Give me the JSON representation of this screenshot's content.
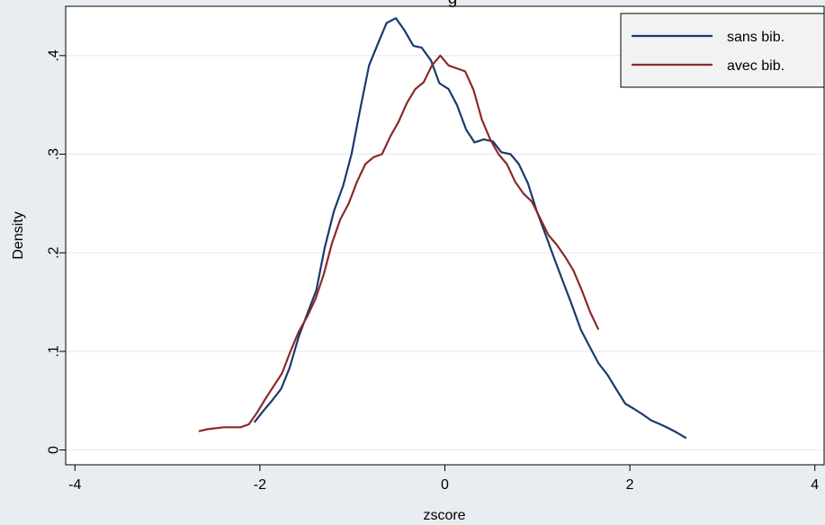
{
  "chart_data": {
    "type": "line",
    "title": "g",
    "xlabel": "zscore",
    "ylabel": "Density",
    "xlim": [
      -4.1,
      4.1
    ],
    "ylim": [
      -0.015,
      0.45
    ],
    "grid": "horizontal",
    "legend_position": "top-right",
    "x_ticks": [
      {
        "value": -4,
        "label": "-4"
      },
      {
        "value": -2,
        "label": "-2"
      },
      {
        "value": 0,
        "label": "0"
      },
      {
        "value": 2,
        "label": "2"
      },
      {
        "value": 4,
        "label": "4"
      }
    ],
    "y_ticks": [
      {
        "value": 0,
        "label": "0"
      },
      {
        "value": 0.1,
        "label": ".1"
      },
      {
        "value": 0.2,
        "label": ".2"
      },
      {
        "value": 0.3,
        "label": ".3"
      },
      {
        "value": 0.4,
        "label": ".4"
      }
    ],
    "series": [
      {
        "name": "sans bib.",
        "color": "#1a3a6e",
        "points": [
          [
            -2.06,
            0.028
          ],
          [
            -1.96,
            0.04
          ],
          [
            -1.87,
            0.05
          ],
          [
            -1.77,
            0.062
          ],
          [
            -1.68,
            0.083
          ],
          [
            -1.58,
            0.115
          ],
          [
            -1.48,
            0.14
          ],
          [
            -1.39,
            0.162
          ],
          [
            -1.3,
            0.205
          ],
          [
            -1.2,
            0.242
          ],
          [
            -1.1,
            0.268
          ],
          [
            -1.01,
            0.3
          ],
          [
            -0.91,
            0.348
          ],
          [
            -0.82,
            0.39
          ],
          [
            -0.72,
            0.413
          ],
          [
            -0.63,
            0.433
          ],
          [
            -0.53,
            0.438
          ],
          [
            -0.44,
            0.426
          ],
          [
            -0.34,
            0.41
          ],
          [
            -0.25,
            0.408
          ],
          [
            -0.15,
            0.395
          ],
          [
            -0.06,
            0.372
          ],
          [
            0.04,
            0.366
          ],
          [
            0.13,
            0.35
          ],
          [
            0.23,
            0.325
          ],
          [
            0.32,
            0.312
          ],
          [
            0.42,
            0.315
          ],
          [
            0.52,
            0.313
          ],
          [
            0.61,
            0.302
          ],
          [
            0.71,
            0.3
          ],
          [
            0.8,
            0.29
          ],
          [
            0.9,
            0.27
          ],
          [
            0.99,
            0.243
          ],
          [
            1.09,
            0.218
          ],
          [
            1.18,
            0.195
          ],
          [
            1.28,
            0.17
          ],
          [
            1.37,
            0.148
          ],
          [
            1.47,
            0.122
          ],
          [
            1.57,
            0.104
          ],
          [
            1.66,
            0.088
          ],
          [
            1.76,
            0.076
          ],
          [
            1.85,
            0.062
          ],
          [
            1.95,
            0.047
          ],
          [
            2.04,
            0.042
          ],
          [
            2.14,
            0.036
          ],
          [
            2.23,
            0.03
          ],
          [
            2.33,
            0.026
          ],
          [
            2.42,
            0.022
          ],
          [
            2.52,
            0.017
          ],
          [
            2.61,
            0.012
          ]
        ]
      },
      {
        "name": "avec bib.",
        "color": "#8b2a2a",
        "points": [
          [
            -2.66,
            0.019
          ],
          [
            -2.57,
            0.021
          ],
          [
            -2.48,
            0.022
          ],
          [
            -2.39,
            0.023
          ],
          [
            -2.3,
            0.023
          ],
          [
            -2.21,
            0.023
          ],
          [
            -2.12,
            0.026
          ],
          [
            -2.03,
            0.038
          ],
          [
            -1.94,
            0.052
          ],
          [
            -1.85,
            0.065
          ],
          [
            -1.76,
            0.078
          ],
          [
            -1.67,
            0.1
          ],
          [
            -1.58,
            0.12
          ],
          [
            -1.49,
            0.135
          ],
          [
            -1.4,
            0.153
          ],
          [
            -1.31,
            0.178
          ],
          [
            -1.22,
            0.21
          ],
          [
            -1.13,
            0.234
          ],
          [
            -1.04,
            0.25
          ],
          [
            -0.95,
            0.272
          ],
          [
            -0.86,
            0.29
          ],
          [
            -0.77,
            0.297
          ],
          [
            -0.68,
            0.3
          ],
          [
            -0.59,
            0.318
          ],
          [
            -0.5,
            0.333
          ],
          [
            -0.41,
            0.352
          ],
          [
            -0.32,
            0.366
          ],
          [
            -0.23,
            0.373
          ],
          [
            -0.14,
            0.39
          ],
          [
            -0.05,
            0.4
          ],
          [
            0.04,
            0.39
          ],
          [
            0.13,
            0.387
          ],
          [
            0.22,
            0.384
          ],
          [
            0.31,
            0.365
          ],
          [
            0.4,
            0.335
          ],
          [
            0.49,
            0.315
          ],
          [
            0.58,
            0.3
          ],
          [
            0.67,
            0.29
          ],
          [
            0.76,
            0.272
          ],
          [
            0.85,
            0.26
          ],
          [
            0.94,
            0.252
          ],
          [
            1.03,
            0.235
          ],
          [
            1.12,
            0.218
          ],
          [
            1.21,
            0.208
          ],
          [
            1.3,
            0.196
          ],
          [
            1.39,
            0.182
          ],
          [
            1.48,
            0.162
          ],
          [
            1.57,
            0.14
          ],
          [
            1.66,
            0.122
          ]
        ]
      }
    ]
  }
}
